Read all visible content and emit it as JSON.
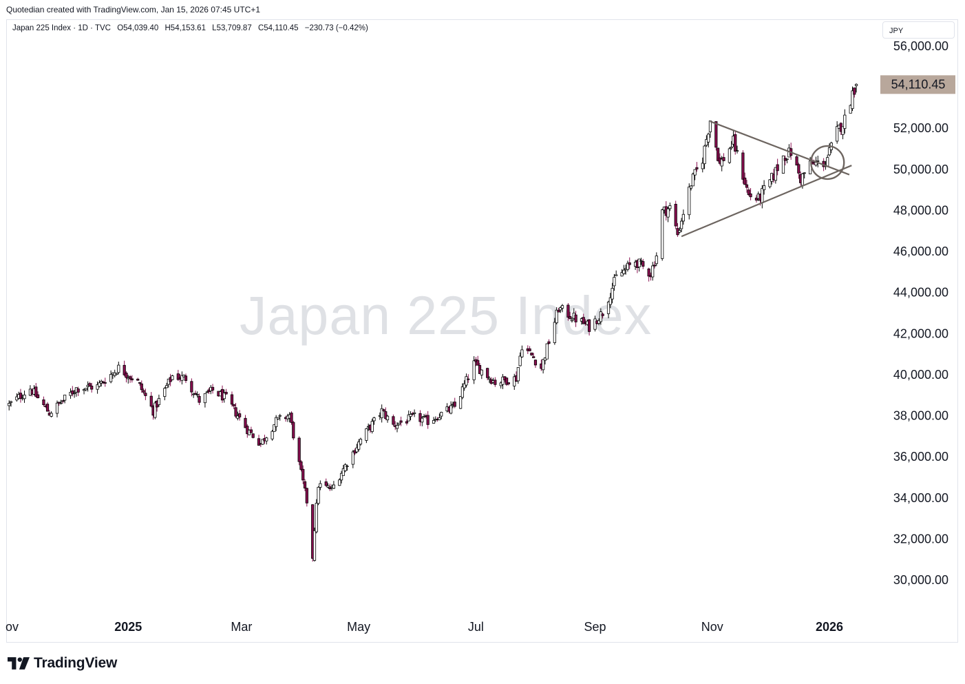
{
  "header": {
    "caption": "Quotedian created with TradingView.com, Jan 15, 2026 07:45 UTC+1"
  },
  "legend": {
    "symbol": "Japan 225 Index · 1D · TVC",
    "open": "O54,039.40",
    "high": "H54,153.61",
    "low": "L53,709.87",
    "close": "C54,110.45",
    "change": "−230.73 (−0.42%)"
  },
  "currency": "JPY",
  "watermark": "Japan 225 Index",
  "last_price_label": "54,110.45",
  "footer": {
    "brand": "TradingView"
  },
  "colors": {
    "up": "#ffffff",
    "down": "#880e4f",
    "candle_outline": "#000000",
    "drawing": "#6d6560",
    "price_tag": "#b8a79b"
  },
  "chart_data": {
    "type": "candlestick",
    "title": "Japan 225 Index",
    "ylim": [
      28500,
      57000
    ],
    "y_ticks": [
      "30,000.00",
      "32,000.00",
      "34,000.00",
      "36,000.00",
      "38,000.00",
      "40,000.00",
      "42,000.00",
      "44,000.00",
      "46,000.00",
      "48,000.00",
      "50,000.00",
      "52,000.00",
      "54,000.00",
      "56,000.00"
    ],
    "x_ticks": [
      {
        "label": "ov",
        "date": "2024-11-01",
        "bold": false
      },
      {
        "label": "2025",
        "date": "2025-01-01",
        "bold": true
      },
      {
        "label": "Mar",
        "date": "2025-03-01",
        "bold": false
      },
      {
        "label": "May",
        "date": "2025-05-01",
        "bold": false
      },
      {
        "label": "Jul",
        "date": "2025-07-01",
        "bold": false
      },
      {
        "label": "Sep",
        "date": "2025-09-01",
        "bold": false
      },
      {
        "label": "Nov",
        "date": "2025-11-01",
        "bold": false
      },
      {
        "label": "2026",
        "date": "2026-01-01",
        "bold": true
      }
    ],
    "anchor_closes": [
      [
        "2024-10-31",
        38500
      ],
      [
        "2024-11-11",
        39300
      ],
      [
        "2024-11-21",
        38100
      ],
      [
        "2024-12-05",
        39300
      ],
      [
        "2024-12-16",
        39400
      ],
      [
        "2024-12-27",
        40300
      ],
      [
        "2025-01-06",
        39600
      ],
      [
        "2025-01-14",
        38200
      ],
      [
        "2025-01-24",
        39900
      ],
      [
        "2025-01-31",
        39800
      ],
      [
        "2025-02-07",
        38700
      ],
      [
        "2025-02-14",
        39200
      ],
      [
        "2025-02-21",
        38800
      ],
      [
        "2025-03-04",
        37300
      ],
      [
        "2025-03-11",
        36600
      ],
      [
        "2025-03-19",
        37700
      ],
      [
        "2025-03-26",
        38000
      ],
      [
        "2025-03-31",
        35600
      ],
      [
        "2025-04-04",
        33800
      ],
      [
        "2025-04-07",
        31100
      ],
      [
        "2025-04-08",
        32500
      ],
      [
        "2025-04-10",
        34600
      ],
      [
        "2025-04-17",
        34400
      ],
      [
        "2025-04-25",
        35700
      ],
      [
        "2025-05-02",
        36800
      ],
      [
        "2025-05-13",
        38200
      ],
      [
        "2025-05-19",
        37500
      ],
      [
        "2025-05-30",
        37900
      ],
      [
        "2025-06-06",
        37700
      ],
      [
        "2025-06-20",
        38400
      ],
      [
        "2025-06-30",
        40500
      ],
      [
        "2025-07-11",
        39600
      ],
      [
        "2025-07-22",
        39800
      ],
      [
        "2025-07-25",
        41400
      ],
      [
        "2025-07-31",
        40800
      ],
      [
        "2025-08-04",
        40300
      ],
      [
        "2025-08-13",
        43200
      ],
      [
        "2025-08-20",
        42800
      ],
      [
        "2025-08-29",
        42300
      ],
      [
        "2025-09-05",
        43000
      ],
      [
        "2025-09-12",
        44700
      ],
      [
        "2025-09-22",
        45500
      ],
      [
        "2025-09-30",
        44900
      ],
      [
        "2025-10-03",
        45800
      ],
      [
        "2025-10-06",
        47900
      ],
      [
        "2025-10-10",
        48100
      ],
      [
        "2025-10-14",
        46800
      ],
      [
        "2025-10-21",
        49300
      ],
      [
        "2025-10-27",
        50500
      ],
      [
        "2025-10-31",
        52400
      ],
      [
        "2025-11-05",
        50200
      ],
      [
        "2025-11-12",
        51300
      ],
      [
        "2025-11-20",
        48700
      ],
      [
        "2025-11-25",
        48500
      ],
      [
        "2025-12-02",
        49500
      ],
      [
        "2025-12-08",
        50600
      ],
      [
        "2025-12-12",
        50800
      ],
      [
        "2025-12-17",
        49500
      ],
      [
        "2025-12-22",
        50200
      ],
      [
        "2025-12-30",
        50300
      ],
      [
        "2026-01-05",
        51800
      ],
      [
        "2026-01-09",
        52400
      ],
      [
        "2026-01-13",
        53700
      ],
      [
        "2026-01-15",
        54110.45
      ]
    ],
    "annotations": {
      "triangle_upper": [
        [
          "2025-10-31",
          52300
        ],
        [
          "2026-01-06",
          49900
        ]
      ],
      "triangle_lower": [
        [
          "2025-10-16",
          46700
        ],
        [
          "2026-01-06",
          49900
        ]
      ],
      "breakout_circle": {
        "date": "2025-12-31",
        "price": 50300
      }
    }
  }
}
